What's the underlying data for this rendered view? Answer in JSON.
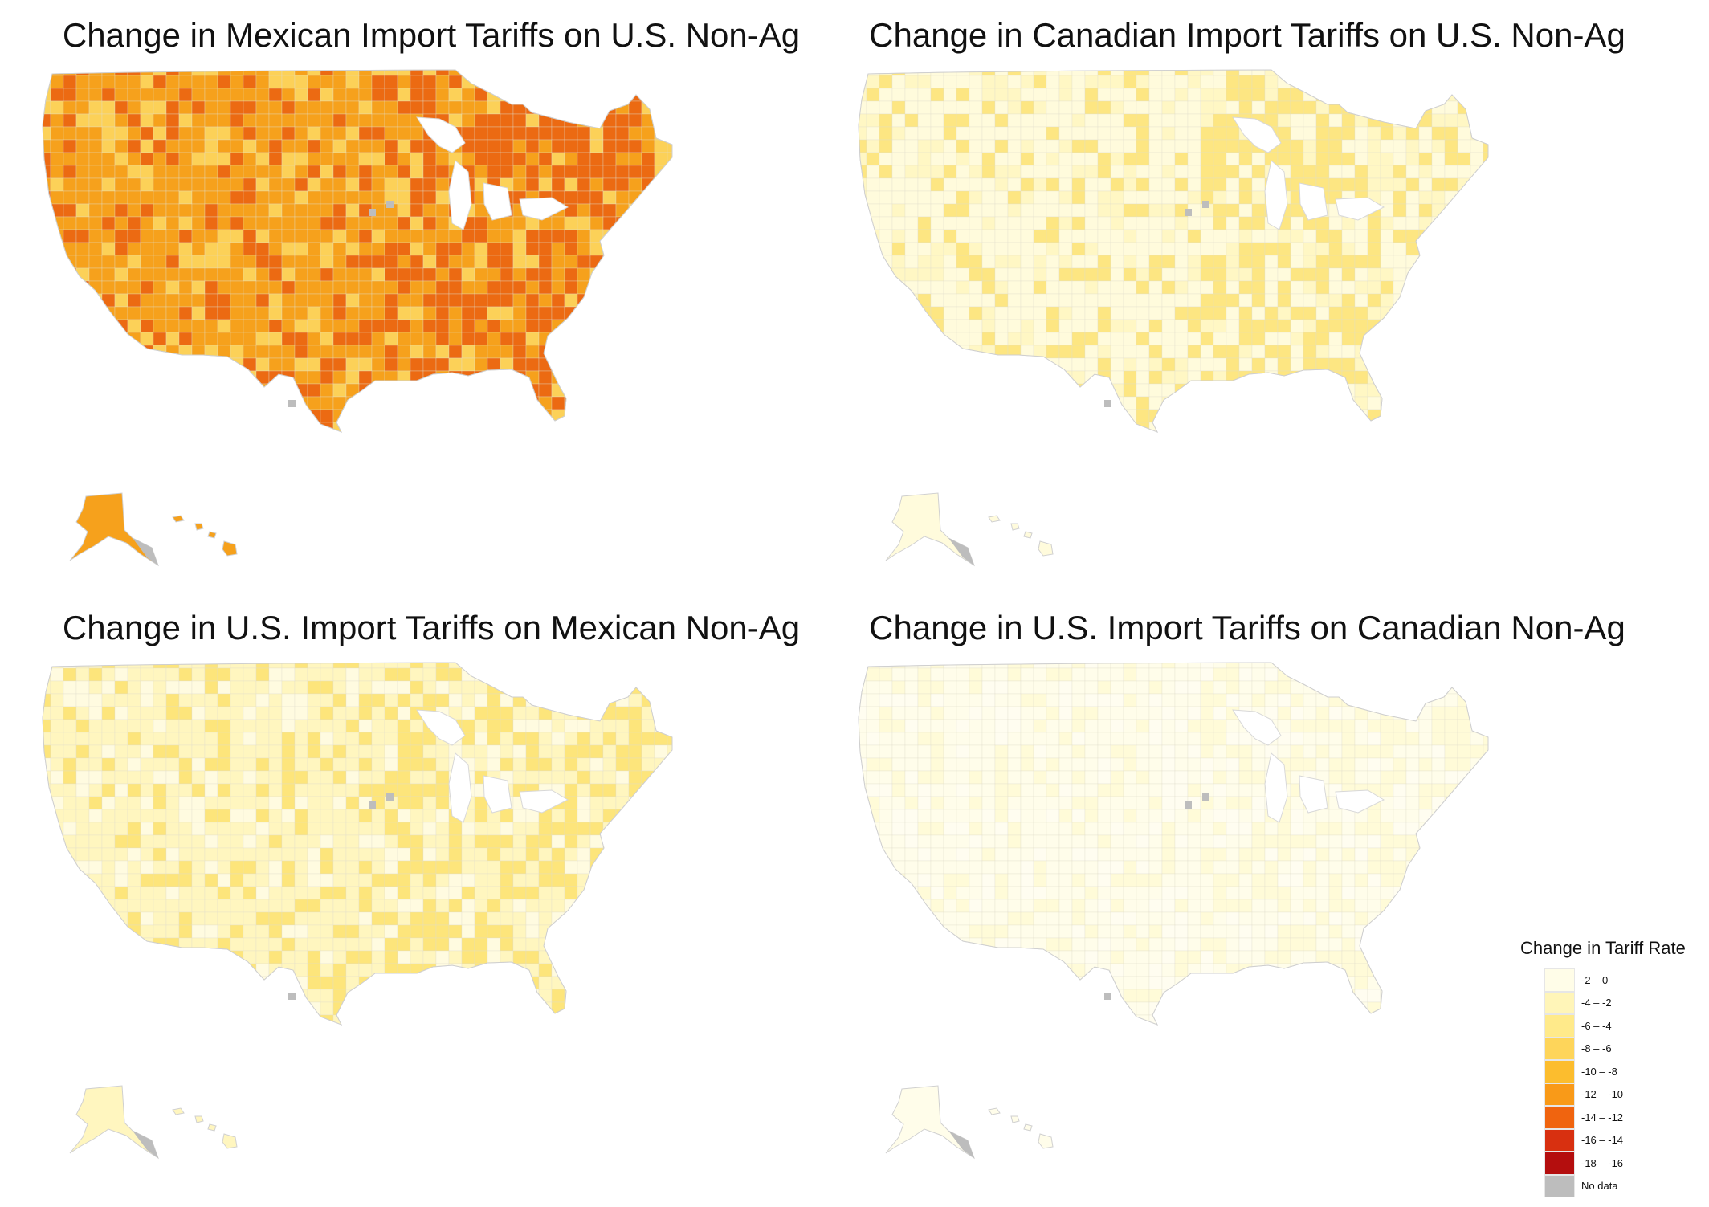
{
  "panels": [
    {
      "title": "Change in Mexican Import Tariffs on U.S. Non-Ag",
      "fill": "#f6a11c",
      "accent": "#ec6a12",
      "light": "#fcd158"
    },
    {
      "title": "Change in Canadian Import Tariffs on U.S. Non-Ag",
      "fill": "#fffbdc",
      "accent": "#fde682",
      "light": "#fff7c4"
    },
    {
      "title": "Change in U.S. Import Tariffs on Mexican Non-Ag",
      "fill": "#fff6bf",
      "accent": "#fde57b",
      "light": "#fffbe0"
    },
    {
      "title": "Change in U.S. Import Tariffs on Canadian Non-Ag",
      "fill": "#fffdea",
      "accent": "#fffbd8",
      "light": "#fffdf0"
    }
  ],
  "legend": {
    "title": "Change in Tariff Rate",
    "items": [
      {
        "label": "-2 – 0",
        "color": "#fffde8"
      },
      {
        "label": "-4 – -2",
        "color": "#fff5b8"
      },
      {
        "label": "-6 – -4",
        "color": "#ffea8a"
      },
      {
        "label": "-8 – -6",
        "color": "#fed55a"
      },
      {
        "label": "-10 – -8",
        "color": "#fcbd2e"
      },
      {
        "label": "-12 – -10",
        "color": "#f99a18"
      },
      {
        "label": "-14 – -12",
        "color": "#f0640f"
      },
      {
        "label": "-16 – -14",
        "color": "#d83010"
      },
      {
        "label": "-18 – -16",
        "color": "#b40e0e"
      },
      {
        "label": "No data",
        "color": "#bdbdbd"
      }
    ]
  }
}
